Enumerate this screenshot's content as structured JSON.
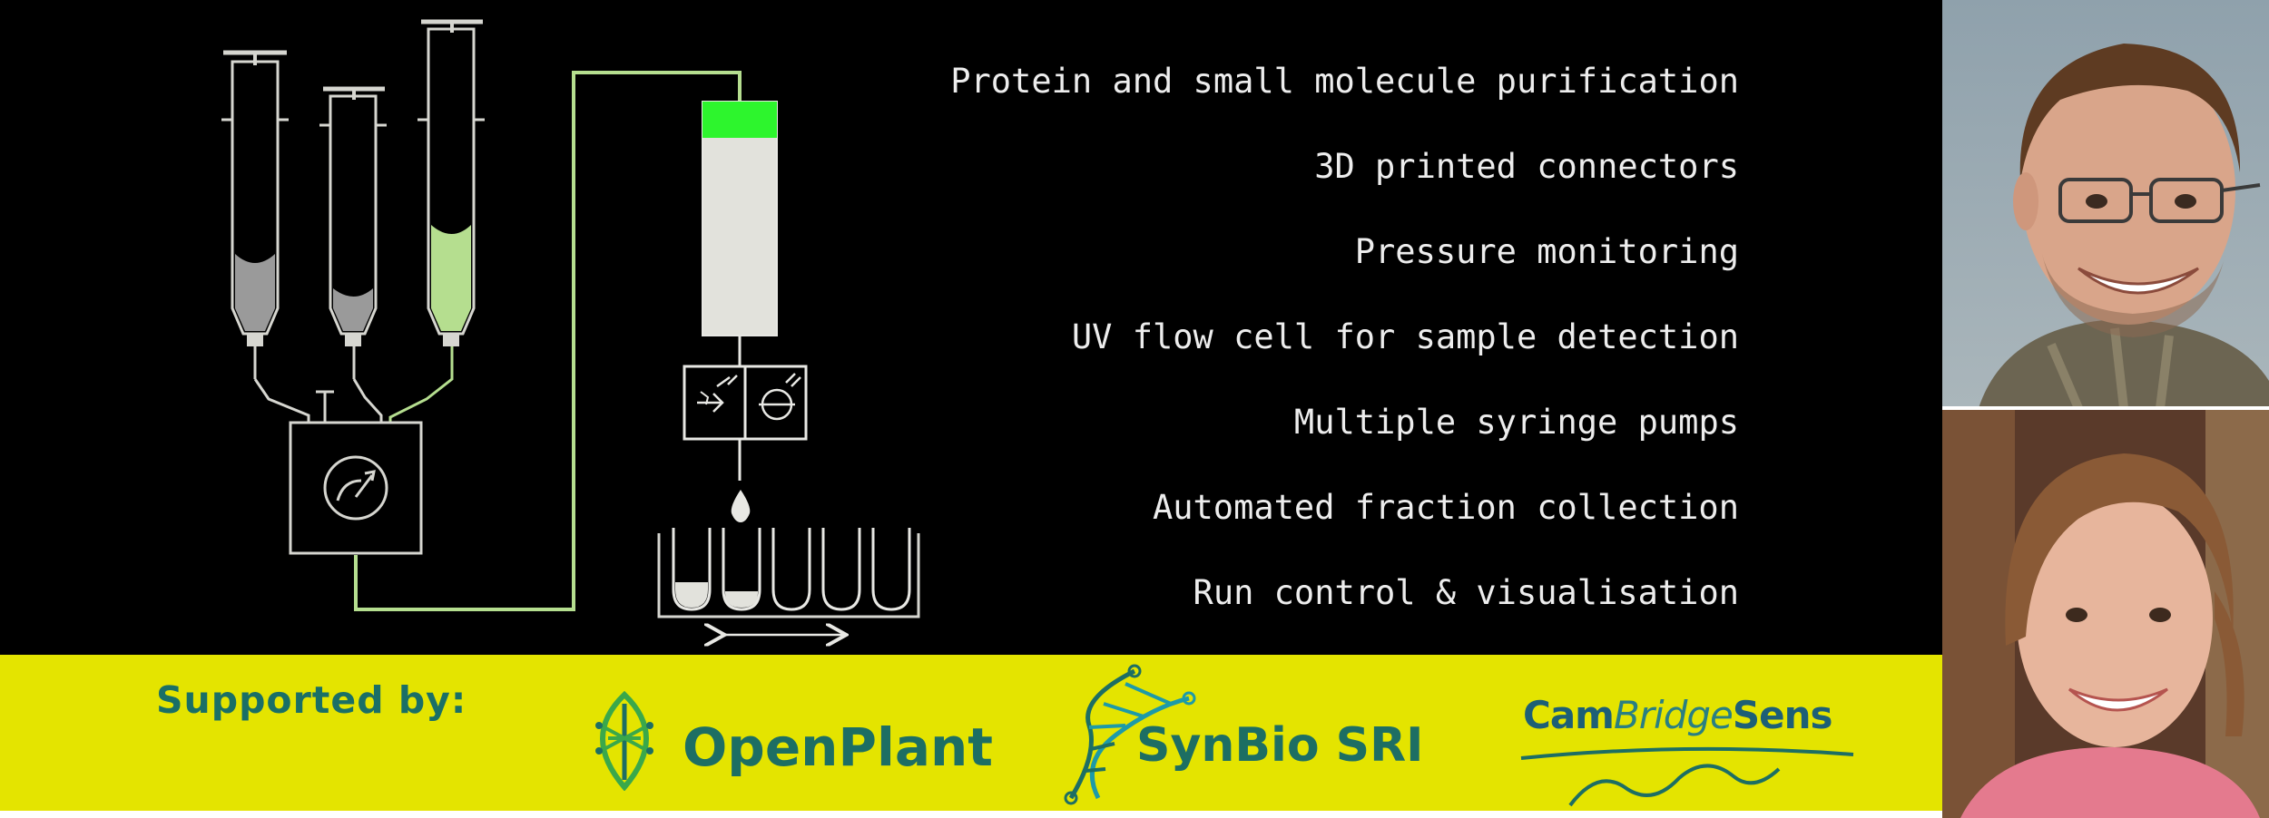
{
  "features": [
    "Protein and small molecule purification",
    "3D printed connectors",
    "Pressure monitoring",
    "UV flow cell for sample detection",
    "Multiple syringe pumps",
    "Automated fraction collection",
    "Run control & visualisation"
  ],
  "sponsors": {
    "label": "Supported by:",
    "openplant": {
      "name": "OpenPlant"
    },
    "synbio": {
      "name": "SynBio SRI"
    },
    "cambridgesens": {
      "part1": "Cam",
      "part2": "Bridge",
      "part3": "Sens"
    }
  },
  "colors": {
    "panel_background": "#000000",
    "sponsor_bar": "#e4e400",
    "tubing_green": "#b5de8f",
    "column_cap_green": "#2df52d",
    "feature_text": "#ededed",
    "logo_teal": "#1d6e63"
  },
  "photos": [
    "portrait-man",
    "portrait-woman"
  ]
}
